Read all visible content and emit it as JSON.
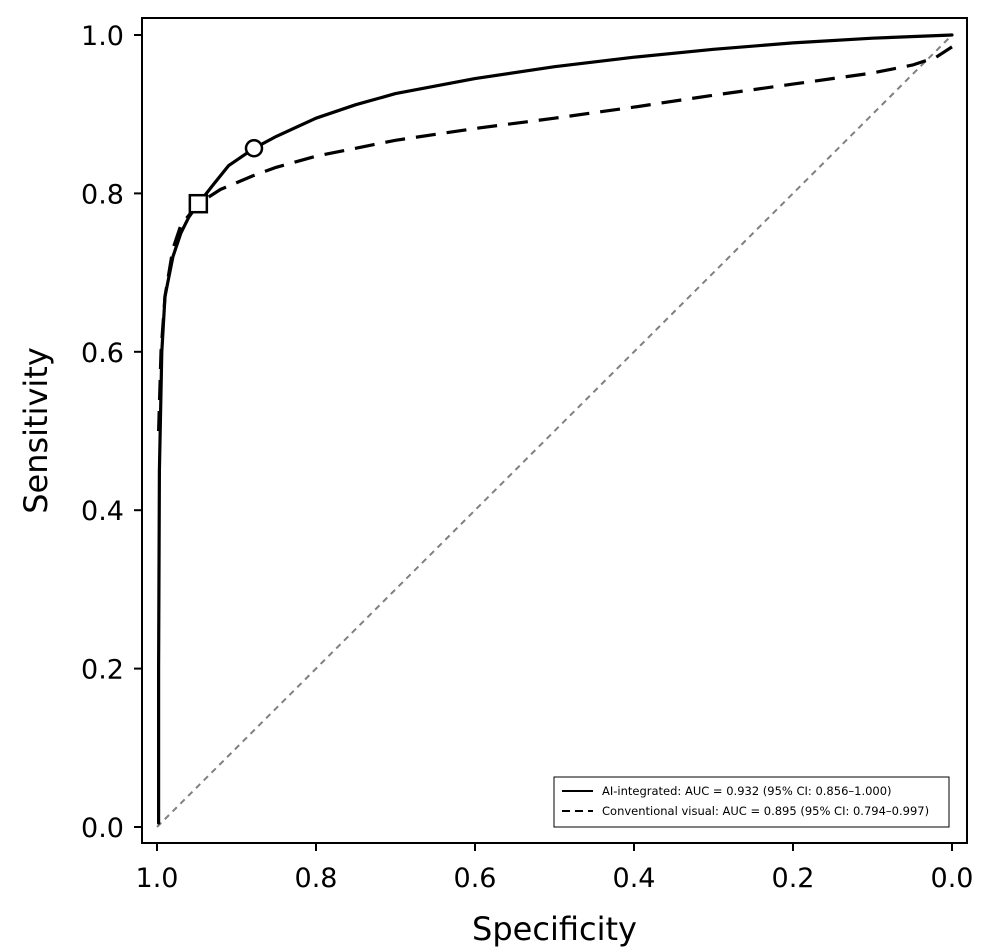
{
  "chart_data": {
    "type": "line",
    "xlabel": "Specificity",
    "ylabel": "Sensitivity",
    "x_reversed": true,
    "xlim": [
      1.0,
      0.0
    ],
    "ylim": [
      0.0,
      1.0
    ],
    "x_ticks": [
      "1.0",
      "0.8",
      "0.6",
      "0.4",
      "0.2",
      "0.0"
    ],
    "y_ticks": [
      "0.0",
      "0.2",
      "0.4",
      "0.6",
      "0.8",
      "1.0"
    ],
    "grid": false,
    "legend_position": "bottom-right",
    "series": [
      {
        "name": "AI-integrated:  AUC = 0.932 (95% CI: 0.856–1.000)",
        "style": "solid",
        "color": "#000000",
        "points": [
          [
            0.998,
            0.005
          ],
          [
            0.998,
            0.2
          ],
          [
            0.997,
            0.45
          ],
          [
            0.994,
            0.6
          ],
          [
            0.99,
            0.67
          ],
          [
            0.98,
            0.72
          ],
          [
            0.97,
            0.75
          ],
          [
            0.96,
            0.77
          ],
          [
            0.948,
            0.787
          ],
          [
            0.93,
            0.81
          ],
          [
            0.91,
            0.835
          ],
          [
            0.878,
            0.857
          ],
          [
            0.85,
            0.872
          ],
          [
            0.8,
            0.895
          ],
          [
            0.75,
            0.912
          ],
          [
            0.7,
            0.926
          ],
          [
            0.6,
            0.945
          ],
          [
            0.5,
            0.96
          ],
          [
            0.4,
            0.972
          ],
          [
            0.3,
            0.982
          ],
          [
            0.2,
            0.99
          ],
          [
            0.1,
            0.996
          ],
          [
            0.0,
            1.0
          ]
        ]
      },
      {
        "name": "Conventional visual:  AUC = 0.895 (95% CI: 0.794–0.997)",
        "style": "dashed",
        "color": "#000000",
        "points": [
          [
            0.998,
            0.5
          ],
          [
            0.995,
            0.6
          ],
          [
            0.99,
            0.67
          ],
          [
            0.98,
            0.73
          ],
          [
            0.97,
            0.76
          ],
          [
            0.948,
            0.787
          ],
          [
            0.92,
            0.805
          ],
          [
            0.88,
            0.822
          ],
          [
            0.85,
            0.833
          ],
          [
            0.8,
            0.847
          ],
          [
            0.7,
            0.867
          ],
          [
            0.6,
            0.882
          ],
          [
            0.5,
            0.895
          ],
          [
            0.4,
            0.909
          ],
          [
            0.3,
            0.924
          ],
          [
            0.2,
            0.938
          ],
          [
            0.1,
            0.952
          ],
          [
            0.05,
            0.962
          ],
          [
            0.02,
            0.972
          ],
          [
            0.0,
            0.985
          ]
        ]
      },
      {
        "name": "",
        "style": "dotted-reference",
        "color": "#808080",
        "points": [
          [
            1.0,
            0.0
          ],
          [
            0.0,
            1.0
          ]
        ]
      }
    ],
    "markers": [
      {
        "series": "AI-integrated",
        "shape": "circle",
        "x": 0.878,
        "y": 0.857
      },
      {
        "series": "Conventional visual",
        "shape": "square",
        "x": 0.948,
        "y": 0.787
      }
    ]
  }
}
